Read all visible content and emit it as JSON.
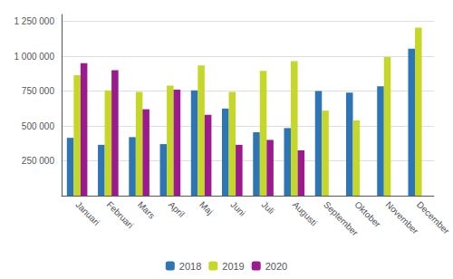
{
  "chart_data": {
    "type": "bar",
    "categories": [
      "Januari",
      "Februari",
      "Mars",
      "April",
      "Maj",
      "Juni",
      "Juli",
      "Augusti",
      "September",
      "Oktober",
      "November",
      "December"
    ],
    "series": [
      {
        "name": "2018",
        "color": "#2e75b6",
        "values": [
          415000,
          365000,
          420000,
          370000,
          755000,
          625000,
          455000,
          485000,
          750000,
          740000,
          785000,
          1055000
        ]
      },
      {
        "name": "2019",
        "color": "#c5d829",
        "values": [
          865000,
          755000,
          745000,
          790000,
          935000,
          745000,
          895000,
          965000,
          610000,
          540000,
          995000,
          1205000
        ]
      },
      {
        "name": "2020",
        "color": "#9b1b8e",
        "values": [
          950000,
          900000,
          620000,
          760000,
          580000,
          365000,
          400000,
          325000,
          null,
          null,
          null,
          null
        ]
      }
    ],
    "ylim": [
      0,
      1300000
    ],
    "yticks": [
      {
        "value": 0,
        "label": ""
      },
      {
        "value": 250000,
        "label": "250 000"
      },
      {
        "value": 500000,
        "label": "500 000"
      },
      {
        "value": 750000,
        "label": "750 000"
      },
      {
        "value": 1000000,
        "label": "1 000 000"
      },
      {
        "value": 1250000,
        "label": "1 250 000"
      }
    ],
    "grid": true,
    "legend": "bottom"
  }
}
